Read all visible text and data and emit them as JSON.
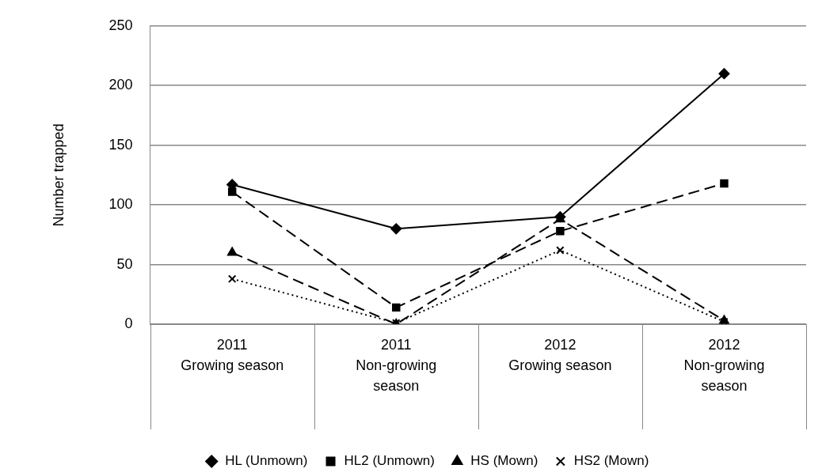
{
  "chart_data": {
    "type": "line",
    "ylabel": "Number trapped",
    "categories": [
      "2011\nGrowing season",
      "2011\nNon-growing season",
      "2012\nGrowing season",
      "2012\nNon-growing season"
    ],
    "series": [
      {
        "name": "HL (Unmown)",
        "color": "#000000",
        "marker": "diamond",
        "line_style": "solid",
        "values": [
          117,
          80,
          90,
          210
        ]
      },
      {
        "name": "HL2 (Unmown)",
        "color": "#000000",
        "marker": "square",
        "line_style": "dashed",
        "values": [
          111,
          14,
          78,
          118
        ]
      },
      {
        "name": "HS (Mown)",
        "color": "#000000",
        "marker": "triangle",
        "line_style": "dashed",
        "values": [
          60,
          0,
          88,
          3
        ]
      },
      {
        "name": "HS2 (Mown)",
        "color": "#000000",
        "marker": "cross",
        "line_style": "dotted",
        "values": [
          38,
          1,
          62,
          2
        ]
      }
    ],
    "ylim": [
      0,
      250
    ],
    "yticks": [
      0,
      50,
      100,
      150,
      200,
      250
    ],
    "grid": "y",
    "legend": "bottom"
  }
}
